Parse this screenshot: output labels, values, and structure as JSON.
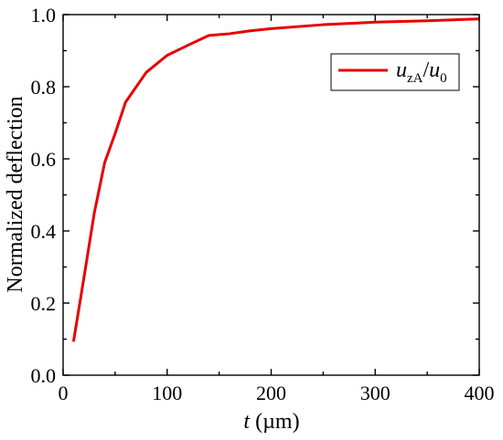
{
  "chart_data": {
    "type": "line",
    "title": "",
    "xlabel": {
      "var": "t",
      "unit": " (µm)"
    },
    "ylabel": "Normalized deflection",
    "xlim": [
      0,
      400
    ],
    "ylim": [
      0.0,
      1.0
    ],
    "xticks": [
      0,
      100,
      200,
      300,
      400
    ],
    "xtick_labels": [
      "0",
      "100",
      "200",
      "300",
      "400"
    ],
    "yticks": [
      0.0,
      0.2,
      0.4,
      0.6,
      0.8,
      1.0
    ],
    "ytick_labels": [
      "0.0",
      "0.2",
      "0.4",
      "0.6",
      "0.8",
      "1.0"
    ],
    "grid": false,
    "legend_position": "top-right",
    "series": [
      {
        "name": "u_zA/u_0",
        "legend": {
          "main": "u",
          "sub1": "zA",
          "slash": "/",
          "main2": "u",
          "sub2": "0"
        },
        "color": "#e60000",
        "x": [
          10,
          20,
          30,
          40,
          50,
          60,
          80,
          100,
          120,
          140,
          160,
          180,
          200,
          250,
          300,
          350,
          400
        ],
        "y": [
          0.093,
          0.27,
          0.45,
          0.59,
          0.67,
          0.757,
          0.84,
          0.887,
          0.915,
          0.942,
          0.947,
          0.955,
          0.961,
          0.972,
          0.979,
          0.983,
          0.988
        ]
      }
    ]
  }
}
